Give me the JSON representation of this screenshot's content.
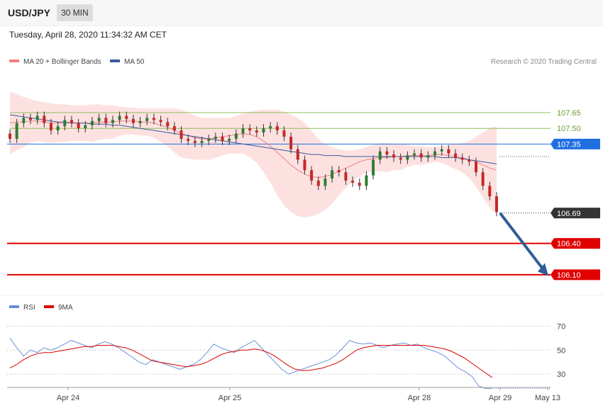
{
  "header": {
    "symbol": "USD/JPY",
    "timeframe": "30 MIN",
    "datetime": "Tuesday, April 28, 2020 11:34:32 AM CET"
  },
  "legend": {
    "main": [
      {
        "label": "MA 20 + Bollinger Bands",
        "color": "#f08080"
      },
      {
        "label": "MA 50",
        "color": "#3a5a9a"
      }
    ],
    "rsi": [
      {
        "label": "RSI",
        "color": "#6a8fd8"
      },
      {
        "label": "9MA",
        "color": "#dd0000"
      }
    ],
    "credit": "Research © 2020 Trading Central"
  },
  "colors": {
    "up": "#2e7d32",
    "down": "#c62828",
    "resistance": "#8ec05a",
    "pivot": "#1f6fe0",
    "support": "#e00000",
    "current": "#333333",
    "arrow": "#2f5e96",
    "band": "#fddcdc"
  },
  "chart_data": {
    "type": "line",
    "instrument": "USD/JPY",
    "timeframe": "30 MIN",
    "price_range": [
      105.95,
      108.05
    ],
    "x_labels": [
      "Apr 24",
      "Apr 25",
      "Apr 28",
      "Apr 29",
      "May 13"
    ],
    "levels": [
      {
        "value": 107.65,
        "label": "107.65",
        "kind": "resistance"
      },
      {
        "value": 107.5,
        "label": "107.50",
        "kind": "resistance"
      },
      {
        "value": 107.35,
        "label": "107.35",
        "kind": "pivot"
      },
      {
        "value": 106.69,
        "label": "106.69",
        "kind": "current"
      },
      {
        "value": 106.4,
        "label": "106.40",
        "kind": "support"
      },
      {
        "value": 106.1,
        "label": "106.10",
        "kind": "support"
      }
    ],
    "price_series": [
      {
        "name": "Price",
        "values": [
          107.4,
          107.55,
          107.6,
          107.58,
          107.62,
          107.55,
          107.48,
          107.52,
          107.58,
          107.55,
          107.5,
          107.53,
          107.57,
          107.6,
          107.55,
          107.58,
          107.62,
          107.59,
          107.55,
          107.57,
          107.6,
          107.58,
          107.56,
          107.52,
          107.48,
          107.4,
          107.38,
          107.36,
          107.38,
          107.4,
          107.42,
          107.38,
          107.4,
          107.45,
          107.5,
          107.48,
          107.46,
          107.5,
          107.52,
          107.48,
          107.42,
          107.3,
          107.2,
          107.1,
          107.0,
          106.95,
          107.02,
          107.1,
          107.08,
          107.0,
          106.98,
          106.95,
          107.05,
          107.2,
          107.28,
          107.25,
          107.22,
          107.2,
          107.24,
          107.26,
          107.22,
          107.24,
          107.28,
          107.3,
          107.26,
          107.22,
          107.2,
          107.18,
          107.08,
          106.95,
          106.85,
          106.7
        ]
      },
      {
        "name": "MA 20",
        "values": [
          107.55,
          107.56,
          107.56,
          107.57,
          107.57,
          107.56,
          107.55,
          107.55,
          107.55,
          107.55,
          107.55,
          107.55,
          107.55,
          107.56,
          107.56,
          107.56,
          107.57,
          107.57,
          107.57,
          107.56,
          107.56,
          107.55,
          107.53,
          107.51,
          107.48,
          107.45,
          107.43,
          107.41,
          107.4,
          107.4,
          107.41,
          107.42,
          107.43,
          107.44,
          107.45,
          107.44,
          107.42,
          107.38,
          107.33,
          107.27,
          107.21,
          107.15,
          107.1,
          107.06,
          107.04,
          107.03,
          107.04,
          107.06,
          107.09,
          107.12,
          107.15,
          107.18,
          107.2,
          107.21,
          107.22,
          107.22,
          107.23,
          107.23,
          107.24,
          107.24,
          107.24,
          107.24,
          107.25,
          107.25,
          107.24,
          107.23,
          107.22,
          107.2,
          107.18,
          107.15,
          107.12,
          107.1
        ]
      },
      {
        "name": "MA 50",
        "values": [
          107.63,
          107.62,
          107.61,
          107.6,
          107.59,
          107.58,
          107.57,
          107.56,
          107.56,
          107.55,
          107.55,
          107.55,
          107.54,
          107.54,
          107.54,
          107.53,
          107.53,
          107.52,
          107.51,
          107.5,
          107.49,
          107.48,
          107.47,
          107.46,
          107.45,
          107.44,
          107.43,
          107.42,
          107.41,
          107.4,
          107.39,
          107.38,
          107.37,
          107.36,
          107.35,
          107.34,
          107.33,
          107.32,
          107.31,
          107.3,
          107.29,
          107.28,
          107.27,
          107.26,
          107.25,
          107.25,
          107.24,
          107.24,
          107.24,
          107.23,
          107.23,
          107.23,
          107.23,
          107.23,
          107.23,
          107.23,
          107.23,
          107.23,
          107.23,
          107.23,
          107.23,
          107.23,
          107.23,
          107.22,
          107.22,
          107.22,
          107.21,
          107.2,
          107.19,
          107.18,
          107.17,
          107.16
        ]
      },
      {
        "name": "BB Upper",
        "values": [
          107.85,
          107.83,
          107.8,
          107.78,
          107.76,
          107.75,
          107.74,
          107.73,
          107.73,
          107.72,
          107.72,
          107.72,
          107.73,
          107.73,
          107.72,
          107.72,
          107.71,
          107.7,
          107.7,
          107.69,
          107.69,
          107.69,
          107.69,
          107.69,
          107.69,
          107.68,
          107.65,
          107.62,
          107.6,
          107.6,
          107.6,
          107.6,
          107.6,
          107.62,
          107.64,
          107.66,
          107.67,
          107.68,
          107.68,
          107.68,
          107.66,
          107.63,
          107.6,
          107.55,
          107.48,
          107.4,
          107.35,
          107.32,
          107.3,
          107.29,
          107.29,
          107.3,
          107.32,
          107.34,
          107.36,
          107.36,
          107.35,
          107.35,
          107.34,
          107.33,
          107.33,
          107.32,
          107.32,
          107.33,
          107.34,
          107.35,
          107.36,
          107.38,
          107.42,
          107.46,
          107.5,
          107.52
        ]
      },
      {
        "name": "BB Lower",
        "values": [
          107.25,
          107.29,
          107.32,
          107.36,
          107.38,
          107.37,
          107.36,
          107.37,
          107.37,
          107.38,
          107.38,
          107.38,
          107.37,
          107.39,
          107.4,
          107.4,
          107.43,
          107.44,
          107.44,
          107.43,
          107.43,
          107.41,
          107.37,
          107.33,
          107.27,
          107.22,
          107.21,
          107.2,
          107.2,
          107.2,
          107.22,
          107.24,
          107.26,
          107.26,
          107.26,
          107.22,
          107.17,
          107.08,
          106.98,
          106.86,
          106.76,
          106.7,
          106.66,
          106.65,
          106.66,
          106.68,
          106.72,
          106.78,
          106.86,
          106.93,
          106.99,
          107.04,
          107.08,
          107.09,
          107.09,
          107.08,
          107.1,
          107.1,
          107.13,
          107.15,
          107.15,
          107.16,
          107.18,
          107.17,
          107.14,
          107.11,
          107.08,
          107.02,
          106.94,
          106.84,
          106.74,
          106.68
        ]
      }
    ],
    "rsi_range": [
      20,
      75
    ],
    "rsi_levels": [
      70,
      50,
      30
    ],
    "rsi_series": [
      {
        "name": "RSI",
        "values": [
          60,
          52,
          45,
          50,
          48,
          52,
          50,
          52,
          55,
          58,
          56,
          54,
          52,
          55,
          57,
          55,
          52,
          48,
          44,
          40,
          38,
          42,
          40,
          38,
          36,
          34,
          36,
          38,
          42,
          48,
          55,
          52,
          50,
          48,
          52,
          55,
          58,
          52,
          46,
          40,
          34,
          30,
          32,
          34,
          36,
          38,
          40,
          42,
          46,
          52,
          58,
          56,
          55,
          56,
          54,
          52,
          54,
          55,
          56,
          54,
          55,
          52,
          50,
          48,
          45,
          40,
          35,
          32,
          28,
          20,
          18,
          18
        ]
      },
      {
        "name": "9MA",
        "values": [
          35,
          38,
          42,
          45,
          47,
          48,
          48,
          49,
          50,
          51,
          52,
          53,
          53,
          54,
          54,
          54,
          53,
          52,
          50,
          47,
          44,
          41,
          40,
          39,
          38,
          37,
          36,
          37,
          38,
          40,
          43,
          46,
          48,
          49,
          50,
          50,
          51,
          50,
          48,
          45,
          41,
          37,
          34,
          33,
          33,
          34,
          35,
          37,
          39,
          42,
          46,
          50,
          52,
          53,
          54,
          54,
          54,
          54,
          54,
          54,
          54,
          54,
          53,
          52,
          51,
          49,
          46,
          43,
          39,
          35,
          31,
          27
        ]
      }
    ]
  }
}
